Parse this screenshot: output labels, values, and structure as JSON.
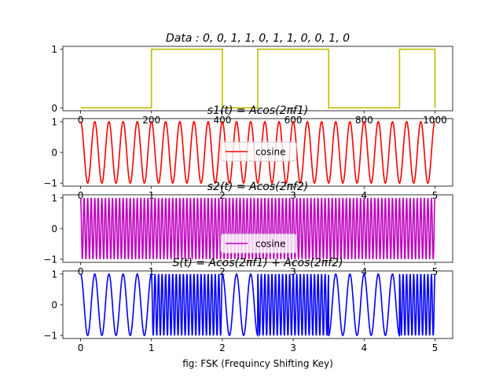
{
  "figure": {
    "xlabel": "fig: FSK (Frequincy Shifting Key)"
  },
  "chart_data": [
    {
      "type": "line",
      "title": "Data : 0, 0, 1, 1, 0, 1, 1, 0, 0, 1, 0",
      "color": "#bfbf00",
      "kind": "square",
      "bits": [
        0,
        0,
        1,
        1,
        0,
        1,
        1,
        0,
        0,
        1,
        0
      ],
      "xlim": [
        0,
        1000
      ],
      "ylim": [
        0,
        1
      ],
      "xticks": [
        0,
        200,
        400,
        600,
        800,
        1000
      ],
      "xtick_labels": [
        "0",
        "200",
        "400",
        "600",
        "800",
        "1000"
      ],
      "yticks": [
        0,
        1
      ],
      "ytick_labels": [
        "0",
        "1"
      ]
    },
    {
      "type": "line",
      "title": "s1(t) = Acos(2πf1)",
      "color": "#ff0000",
      "kind": "cosine",
      "cycles_per_unit": 5,
      "xlim": [
        0,
        5
      ],
      "ylim": [
        -1,
        1
      ],
      "xticks": [
        0,
        1,
        2,
        3,
        4,
        5
      ],
      "xtick_labels": [
        "0",
        "1",
        "2",
        "3",
        "4",
        "5"
      ],
      "yticks": [
        -1,
        0,
        1
      ],
      "ytick_labels": [
        "−1",
        "0",
        "1"
      ],
      "legend": {
        "label": "cosine",
        "placement": "center"
      }
    },
    {
      "type": "line",
      "title": "s2(t) = Acos(2πf2)",
      "color": "#bf00bf",
      "kind": "cosine",
      "cycles_per_unit": 20,
      "xlim": [
        0,
        5
      ],
      "ylim": [
        -1,
        1
      ],
      "xticks": [
        0,
        1,
        2,
        3,
        4,
        5
      ],
      "xtick_labels": [
        "0",
        "1",
        "2",
        "3",
        "4",
        "5"
      ],
      "yticks": [
        -1,
        0,
        1
      ],
      "ytick_labels": [
        "−1",
        "0",
        "1"
      ],
      "legend": {
        "label": "cosine",
        "placement": "lower center"
      }
    },
    {
      "type": "line",
      "title": "S(t) = Acos(2πf1) + Acos(2πf2)",
      "color": "#0000ff",
      "kind": "fsk",
      "bits": [
        0,
        0,
        1,
        1,
        0,
        1,
        1,
        0,
        0,
        1,
        0
      ],
      "cycles_per_unit_low": 5,
      "cycles_per_unit_high": 20,
      "xlim": [
        0,
        5
      ],
      "ylim": [
        -1,
        1
      ],
      "xticks": [
        0,
        1,
        2,
        3,
        4,
        5
      ],
      "xtick_labels": [
        "0",
        "1",
        "2",
        "3",
        "4",
        "5"
      ],
      "yticks": [
        -1,
        0,
        1
      ],
      "ytick_labels": [
        "−1",
        "0",
        "1"
      ]
    }
  ]
}
